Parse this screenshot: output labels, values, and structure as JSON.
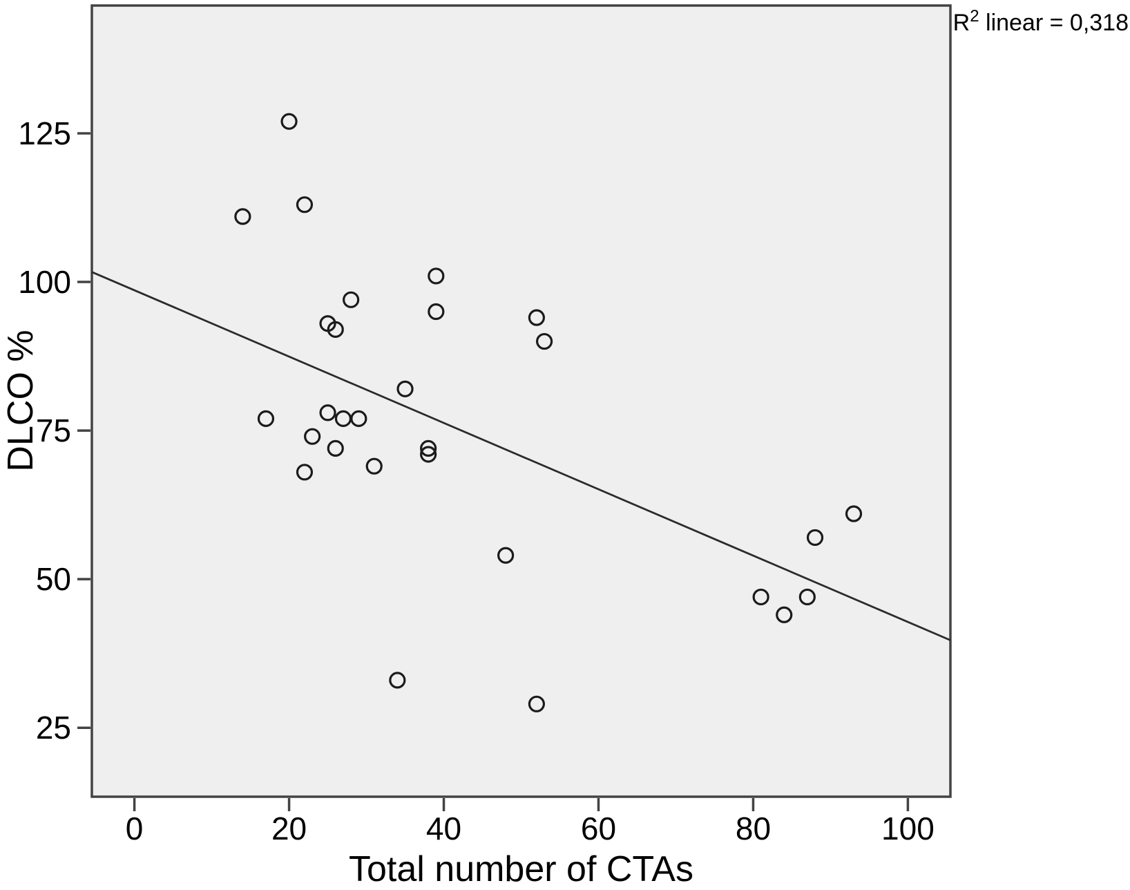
{
  "figure": {
    "annotation": {
      "base": "R",
      "exponent": "2",
      "rest": " linear = 0,318"
    }
  },
  "chart_data": {
    "type": "scatter",
    "title": "",
    "xlabel": "Total number of CTAs",
    "ylabel": "DLCO %",
    "x_ticks": [
      0,
      20,
      40,
      60,
      80,
      100
    ],
    "y_ticks": [
      25,
      50,
      75,
      100,
      125
    ],
    "xlim": [
      -5.5,
      105.5
    ],
    "ylim": [
      13.4,
      146.5
    ],
    "grid": false,
    "legend": "none",
    "marker_style": "open-circle",
    "points": [
      [
        20,
        127
      ],
      [
        22,
        113
      ],
      [
        14,
        111
      ],
      [
        39,
        101
      ],
      [
        28,
        97
      ],
      [
        39,
        95
      ],
      [
        52,
        94
      ],
      [
        25,
        93
      ],
      [
        26,
        92
      ],
      [
        53,
        90
      ],
      [
        35,
        82
      ],
      [
        25,
        78
      ],
      [
        17,
        77
      ],
      [
        27,
        77
      ],
      [
        29,
        77
      ],
      [
        23,
        74
      ],
      [
        26,
        72
      ],
      [
        38,
        72
      ],
      [
        38,
        71
      ],
      [
        31,
        69
      ],
      [
        22,
        68
      ],
      [
        48,
        54
      ],
      [
        34,
        33
      ],
      [
        52,
        29
      ],
      [
        93,
        61
      ],
      [
        88,
        57
      ],
      [
        81,
        47
      ],
      [
        87,
        47
      ],
      [
        84,
        44
      ]
    ],
    "regression": {
      "slope": -0.558,
      "intercept": 98.6,
      "r2_text": "0,318"
    },
    "colors": {
      "plot_bg": "#efeff0",
      "border": "#434345",
      "marker": "#1b1b1b",
      "line": "#2b2b2b",
      "text": "#000000"
    }
  }
}
